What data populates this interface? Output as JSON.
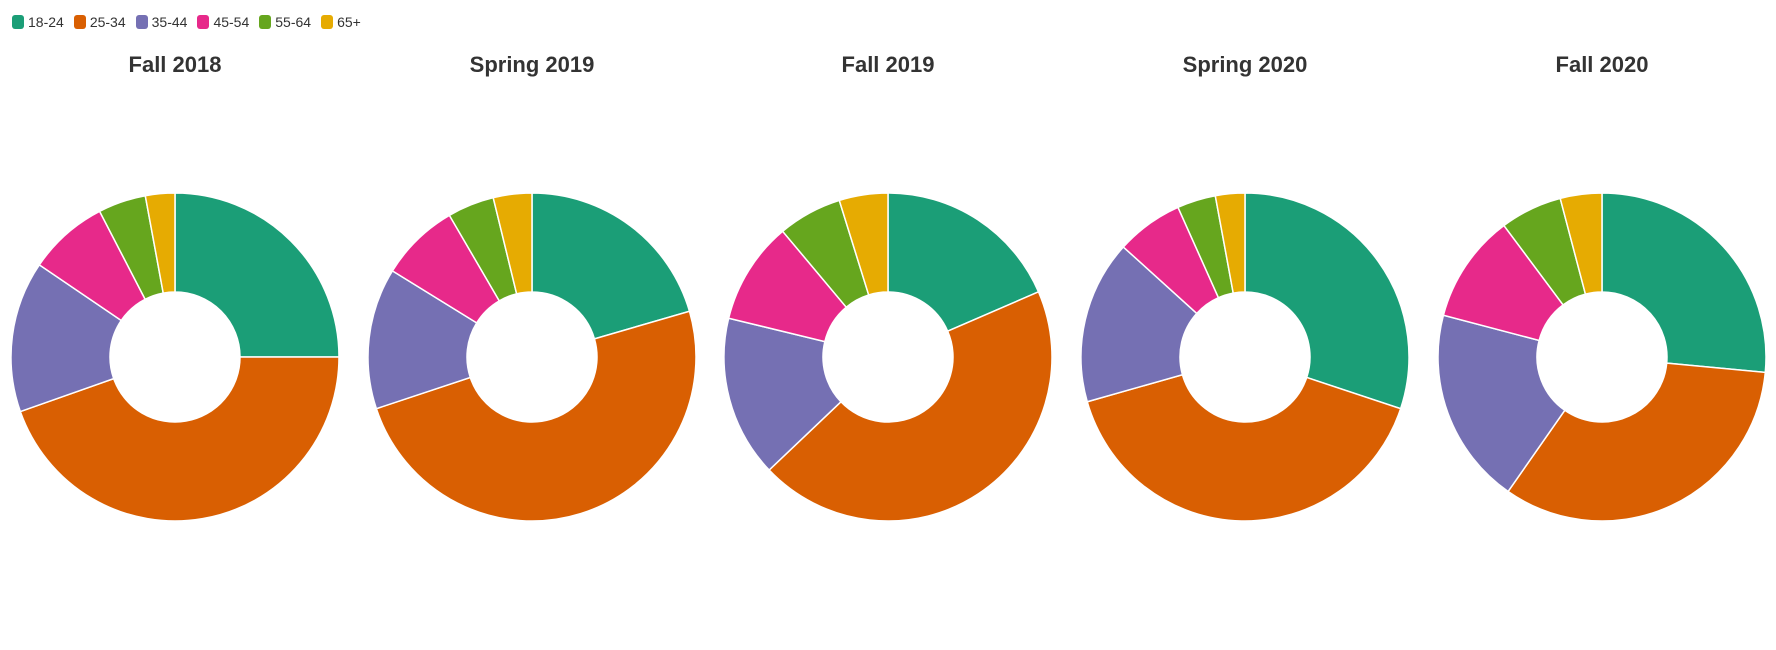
{
  "chart_data": {
    "type": "donut",
    "categories": [
      "18-24",
      "25-34",
      "35-44",
      "45-54",
      "55-64",
      "65+"
    ],
    "colors": [
      "#1b9e77",
      "#d95f02",
      "#7570b3",
      "#e7298a",
      "#66a61e",
      "#e6ab02"
    ],
    "legend_position": "top-left",
    "charts": [
      {
        "title": "Fall 2018",
        "values": [
          25.0,
          44.6,
          14.9,
          7.9,
          4.7,
          2.9
        ]
      },
      {
        "title": "Spring 2019",
        "values": [
          20.5,
          49.4,
          13.9,
          7.8,
          4.6,
          3.8
        ]
      },
      {
        "title": "Fall 2019",
        "values": [
          18.5,
          44.4,
          15.9,
          10.1,
          6.3,
          4.8
        ]
      },
      {
        "title": "Spring 2020",
        "values": [
          30.1,
          40.5,
          16.1,
          6.6,
          3.8,
          2.9
        ]
      },
      {
        "title": "Fall 2020",
        "values": [
          26.5,
          33.2,
          19.4,
          10.7,
          6.1,
          4.1
        ]
      }
    ]
  }
}
